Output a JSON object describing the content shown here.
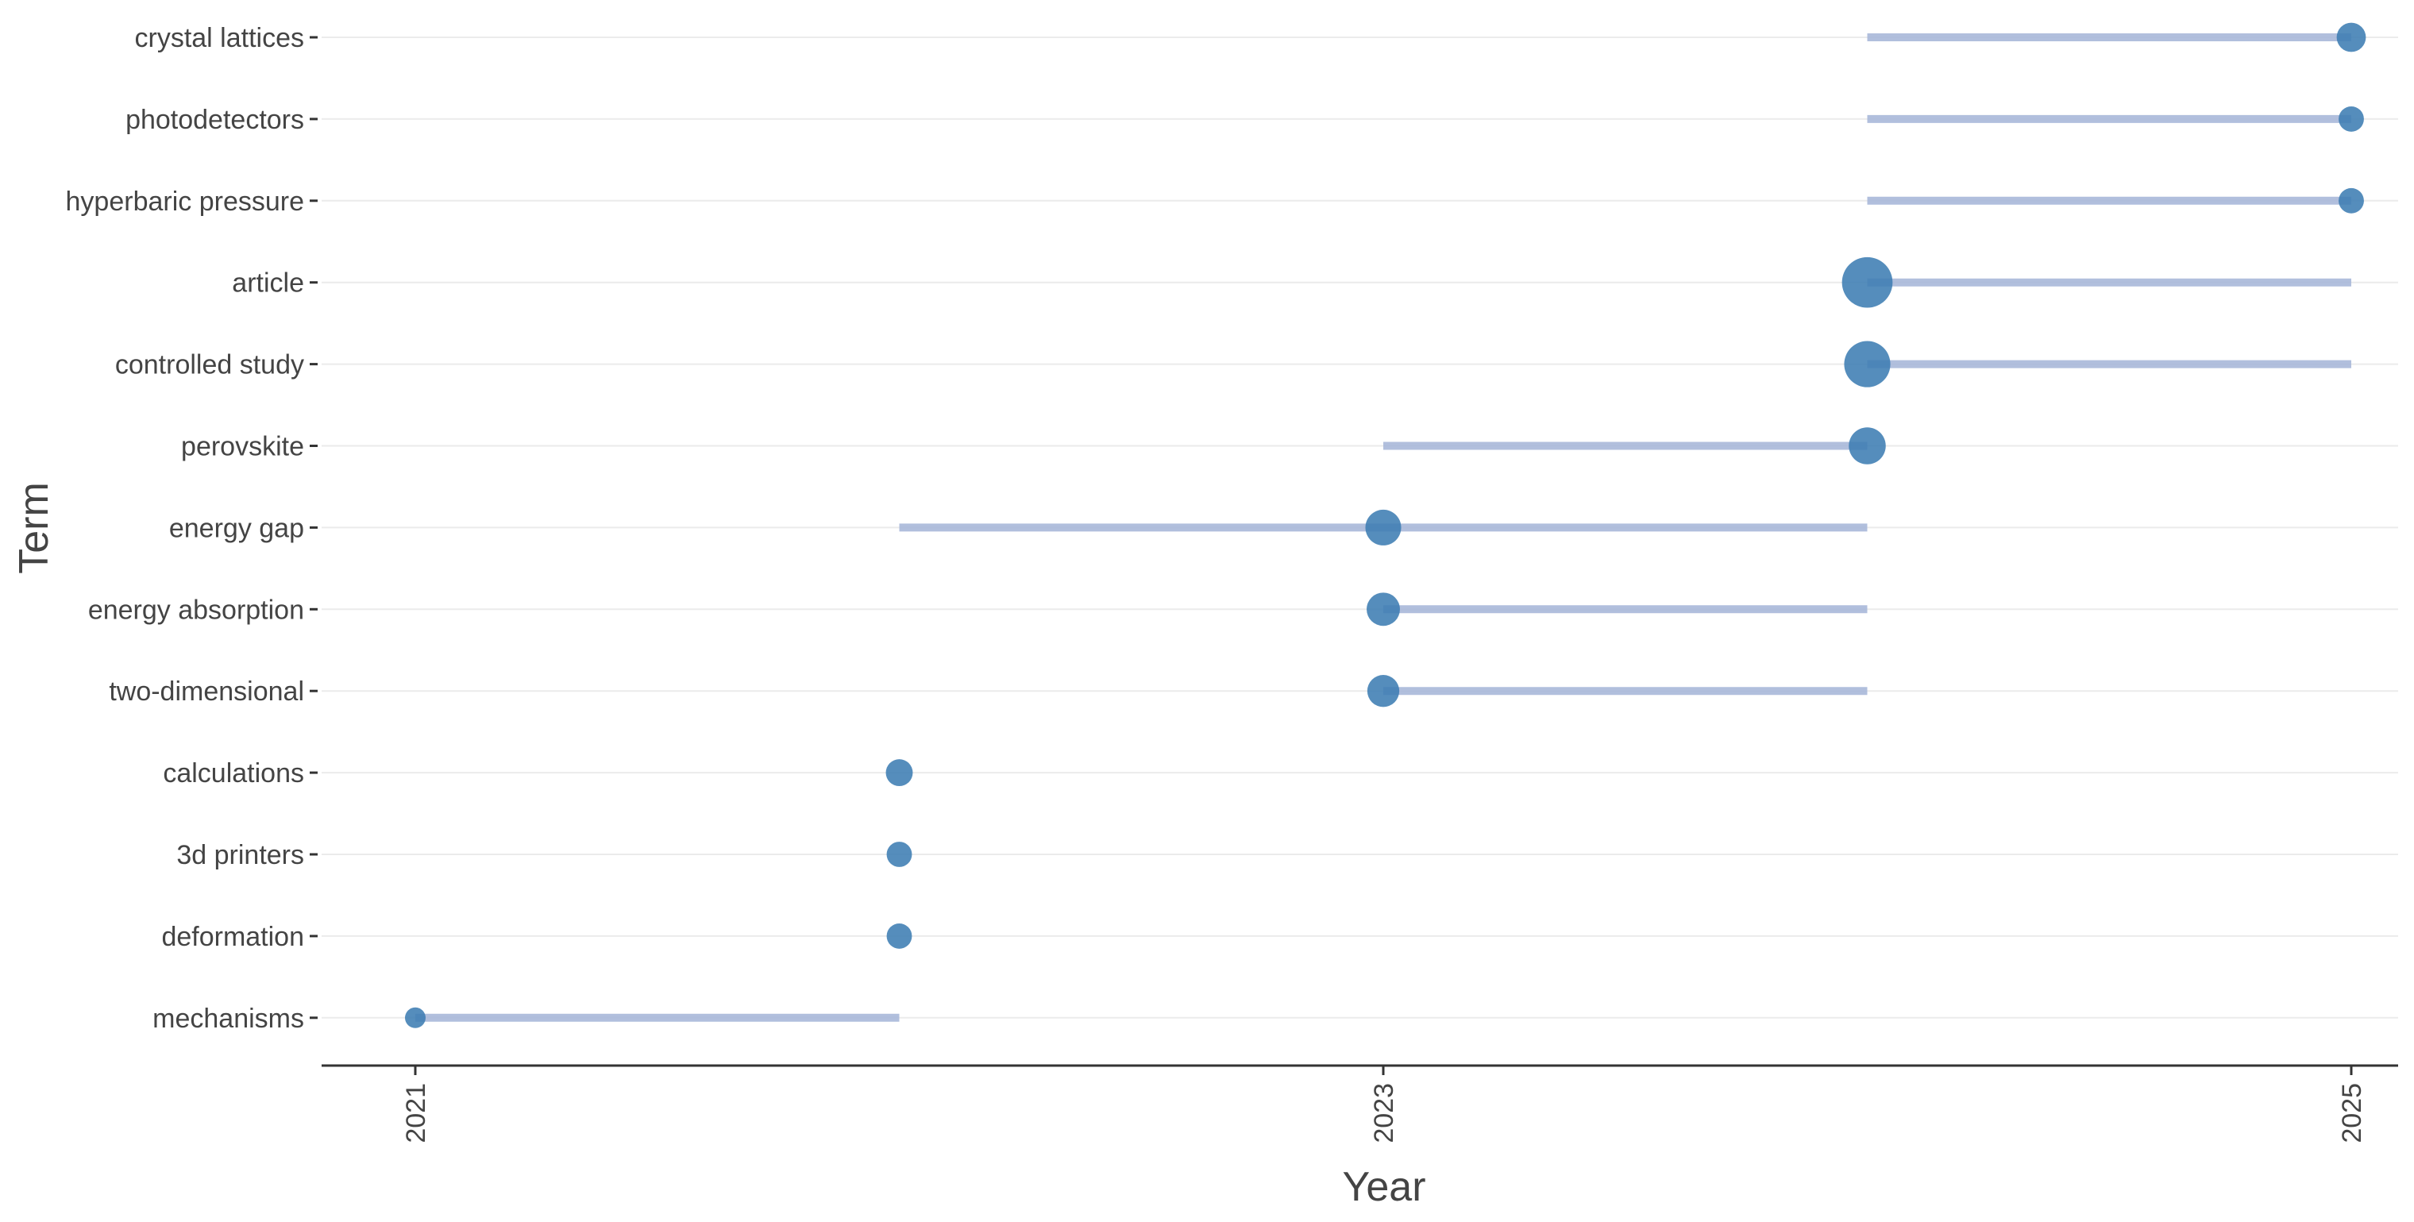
{
  "chart_data": {
    "type": "scatter",
    "xlabel": "Year",
    "ylabel": "Term",
    "xlim": [
      2020.8,
      2025.1
    ],
    "x_ticks": [
      2021,
      2023,
      2025
    ],
    "x_tick_labels": [
      "2021",
      "2023",
      "2025"
    ],
    "grid": "horizontal",
    "colors": {
      "point": "#3d7db3",
      "range": "#a9b8d9",
      "grid": "#ebebeb",
      "axis": "#333333",
      "text": "#444444"
    },
    "terms": [
      {
        "term": "crystal lattices",
        "start": 2024,
        "end": 2025,
        "peak": 2025,
        "size": 2
      },
      {
        "term": "photodetectors",
        "start": 2024,
        "end": 2025,
        "peak": 2025,
        "size": 1.5
      },
      {
        "term": "hyperbaric pressure",
        "start": 2024,
        "end": 2025,
        "peak": 2025,
        "size": 1.5
      },
      {
        "term": "article",
        "start": 2024,
        "end": 2025,
        "peak": 2024,
        "size": 6
      },
      {
        "term": "controlled study",
        "start": 2024,
        "end": 2025,
        "peak": 2024,
        "size": 5
      },
      {
        "term": "perovskite",
        "start": 2023,
        "end": 2024,
        "peak": 2024,
        "size": 3.2
      },
      {
        "term": "energy gap",
        "start": 2022,
        "end": 2024,
        "peak": 2023,
        "size": 3
      },
      {
        "term": "energy absorption",
        "start": 2023,
        "end": 2024,
        "peak": 2023,
        "size": 2.6
      },
      {
        "term": "two-dimensional",
        "start": 2023,
        "end": 2024,
        "peak": 2023,
        "size": 2.4
      },
      {
        "term": "calculations",
        "start": 2022,
        "end": 2022,
        "peak": 2022,
        "size": 1.7
      },
      {
        "term": "3d printers",
        "start": 2022,
        "end": 2022,
        "peak": 2022,
        "size": 1.5
      },
      {
        "term": "deformation",
        "start": 2022,
        "end": 2022,
        "peak": 2022,
        "size": 1.5
      },
      {
        "term": "mechanisms",
        "start": 2021,
        "end": 2022,
        "peak": 2021,
        "size": 1
      }
    ]
  }
}
